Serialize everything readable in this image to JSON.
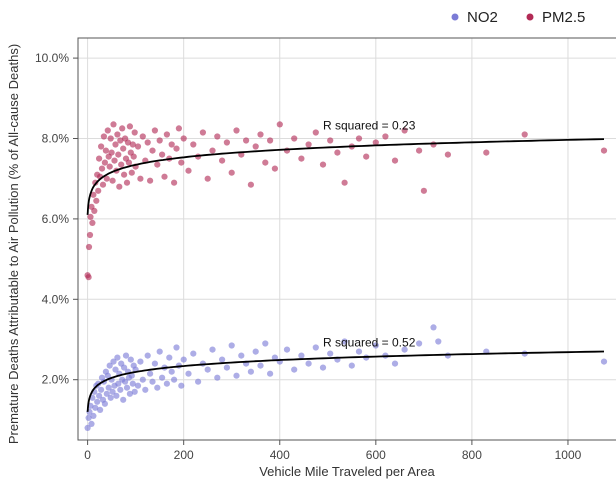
{
  "chart_data": {
    "type": "scatter",
    "xlabel": "Vehicle Mile Traveled per Area",
    "ylabel": "Premature Deaths Attributable to Air Pollution (% of All-cause Deaths)",
    "xlim": [
      -20,
      1100
    ],
    "ylim": [
      0.5,
      10.5
    ],
    "xticks": [
      0,
      200,
      400,
      600,
      800,
      1000
    ],
    "yticks": [
      2.0,
      4.0,
      6.0,
      8.0,
      10.0
    ],
    "ytick_labels": [
      "2.0%",
      "4.0%",
      "6.0%",
      "8.0%",
      "10.0%"
    ],
    "grid": true,
    "legend_position": "top-right",
    "series": [
      {
        "name": "NO2",
        "color": "#7b7bd6",
        "annotation": "R squared = 0.52",
        "annotation_at": [
          490,
          2.82
        ],
        "fit": {
          "a": 1.2,
          "b": 0.215,
          "xmax": 1075
        },
        "points": [
          [
            0,
            0.8
          ],
          [
            2,
            1.05
          ],
          [
            4,
            1.2
          ],
          [
            6,
            1.35
          ],
          [
            8,
            0.9
          ],
          [
            10,
            1.55
          ],
          [
            12,
            1.1
          ],
          [
            14,
            1.7
          ],
          [
            16,
            1.3
          ],
          [
            18,
            1.85
          ],
          [
            20,
            1.45
          ],
          [
            22,
            1.9
          ],
          [
            24,
            1.6
          ],
          [
            26,
            1.25
          ],
          [
            28,
            1.75
          ],
          [
            30,
            2.05
          ],
          [
            32,
            1.5
          ],
          [
            34,
            1.95
          ],
          [
            36,
            1.4
          ],
          [
            38,
            2.2
          ],
          [
            40,
            1.65
          ],
          [
            42,
            2.1
          ],
          [
            44,
            1.8
          ],
          [
            46,
            2.35
          ],
          [
            48,
            1.55
          ],
          [
            50,
            2.0
          ],
          [
            52,
            1.7
          ],
          [
            54,
            2.45
          ],
          [
            56,
            1.85
          ],
          [
            58,
            2.25
          ],
          [
            60,
            1.6
          ],
          [
            62,
            2.55
          ],
          [
            64,
            1.9
          ],
          [
            66,
            2.15
          ],
          [
            68,
            1.75
          ],
          [
            70,
            2.4
          ],
          [
            72,
            2.0
          ],
          [
            74,
            1.5
          ],
          [
            76,
            2.3
          ],
          [
            78,
            1.95
          ],
          [
            80,
            2.6
          ],
          [
            82,
            1.8
          ],
          [
            84,
            2.2
          ],
          [
            86,
            2.05
          ],
          [
            88,
            1.65
          ],
          [
            90,
            2.5
          ],
          [
            92,
            2.1
          ],
          [
            94,
            1.9
          ],
          [
            96,
            2.35
          ],
          [
            98,
            1.7
          ],
          [
            100,
            2.25
          ],
          [
            105,
            1.85
          ],
          [
            110,
            2.45
          ],
          [
            115,
            2.0
          ],
          [
            120,
            1.75
          ],
          [
            125,
            2.6
          ],
          [
            130,
            2.15
          ],
          [
            135,
            1.95
          ],
          [
            140,
            2.4
          ],
          [
            145,
            1.8
          ],
          [
            150,
            2.7
          ],
          [
            155,
            2.05
          ],
          [
            160,
            2.3
          ],
          [
            165,
            1.9
          ],
          [
            170,
            2.55
          ],
          [
            175,
            2.2
          ],
          [
            180,
            2.0
          ],
          [
            185,
            2.8
          ],
          [
            190,
            2.35
          ],
          [
            195,
            1.85
          ],
          [
            200,
            2.5
          ],
          [
            210,
            2.15
          ],
          [
            220,
            2.65
          ],
          [
            230,
            1.95
          ],
          [
            240,
            2.4
          ],
          [
            250,
            2.25
          ],
          [
            260,
            2.75
          ],
          [
            270,
            2.05
          ],
          [
            280,
            2.5
          ],
          [
            290,
            2.3
          ],
          [
            300,
            2.85
          ],
          [
            310,
            2.1
          ],
          [
            320,
            2.6
          ],
          [
            330,
            2.4
          ],
          [
            340,
            2.2
          ],
          [
            350,
            2.7
          ],
          [
            360,
            2.35
          ],
          [
            370,
            2.9
          ],
          [
            380,
            2.15
          ],
          [
            390,
            2.55
          ],
          [
            400,
            2.45
          ],
          [
            415,
            2.75
          ],
          [
            430,
            2.25
          ],
          [
            445,
            2.6
          ],
          [
            460,
            2.4
          ],
          [
            475,
            2.8
          ],
          [
            490,
            2.3
          ],
          [
            505,
            2.65
          ],
          [
            520,
            2.5
          ],
          [
            535,
            2.95
          ],
          [
            550,
            2.35
          ],
          [
            565,
            2.7
          ],
          [
            580,
            2.55
          ],
          [
            600,
            2.85
          ],
          [
            620,
            2.6
          ],
          [
            640,
            2.4
          ],
          [
            660,
            2.75
          ],
          [
            690,
            2.9
          ],
          [
            720,
            3.3
          ],
          [
            730,
            2.95
          ],
          [
            750,
            2.6
          ],
          [
            830,
            2.7
          ],
          [
            910,
            2.65
          ],
          [
            1075,
            2.45
          ]
        ]
      },
      {
        "name": "PM2.5",
        "color": "#b22a55",
        "annotation": "R squared = 0.23",
        "annotation_at": [
          490,
          8.22
        ],
        "fit": {
          "a": 6.1,
          "b": 0.27,
          "xmax": 1075
        },
        "points": [
          [
            0,
            4.6
          ],
          [
            2,
            4.55
          ],
          [
            3,
            5.3
          ],
          [
            5,
            5.6
          ],
          [
            6,
            6.05
          ],
          [
            8,
            6.3
          ],
          [
            10,
            5.9
          ],
          [
            12,
            6.6
          ],
          [
            14,
            6.2
          ],
          [
            16,
            6.9
          ],
          [
            18,
            6.45
          ],
          [
            20,
            7.1
          ],
          [
            22,
            6.7
          ],
          [
            24,
            7.5
          ],
          [
            26,
            7.05
          ],
          [
            28,
            7.8
          ],
          [
            30,
            7.25
          ],
          [
            32,
            6.85
          ],
          [
            34,
            8.05
          ],
          [
            36,
            7.4
          ],
          [
            38,
            7.7
          ],
          [
            40,
            7.0
          ],
          [
            42,
            8.2
          ],
          [
            44,
            7.55
          ],
          [
            46,
            7.3
          ],
          [
            48,
            8.0
          ],
          [
            50,
            7.65
          ],
          [
            52,
            6.95
          ],
          [
            54,
            8.35
          ],
          [
            56,
            7.45
          ],
          [
            58,
            7.85
          ],
          [
            60,
            7.2
          ],
          [
            62,
            8.1
          ],
          [
            64,
            7.6
          ],
          [
            66,
            6.8
          ],
          [
            68,
            7.95
          ],
          [
            70,
            7.35
          ],
          [
            72,
            8.25
          ],
          [
            74,
            7.75
          ],
          [
            76,
            7.1
          ],
          [
            78,
            8.0
          ],
          [
            80,
            7.5
          ],
          [
            82,
            6.9
          ],
          [
            84,
            7.9
          ],
          [
            86,
            7.4
          ],
          [
            88,
            8.3
          ],
          [
            90,
            7.65
          ],
          [
            92,
            7.15
          ],
          [
            94,
            7.85
          ],
          [
            96,
            7.55
          ],
          [
            98,
            8.15
          ],
          [
            100,
            7.3
          ],
          [
            105,
            7.8
          ],
          [
            110,
            7.0
          ],
          [
            115,
            8.05
          ],
          [
            120,
            7.45
          ],
          [
            125,
            7.9
          ],
          [
            130,
            6.95
          ],
          [
            135,
            7.7
          ],
          [
            140,
            8.2
          ],
          [
            145,
            7.35
          ],
          [
            150,
            7.95
          ],
          [
            155,
            7.6
          ],
          [
            160,
            7.05
          ],
          [
            165,
            8.1
          ],
          [
            170,
            7.5
          ],
          [
            175,
            7.85
          ],
          [
            180,
            6.9
          ],
          [
            185,
            7.75
          ],
          [
            190,
            8.25
          ],
          [
            195,
            7.4
          ],
          [
            200,
            8.0
          ],
          [
            210,
            7.2
          ],
          [
            220,
            7.85
          ],
          [
            230,
            7.55
          ],
          [
            240,
            8.15
          ],
          [
            250,
            7.0
          ],
          [
            260,
            7.7
          ],
          [
            270,
            8.05
          ],
          [
            280,
            7.45
          ],
          [
            290,
            7.9
          ],
          [
            300,
            7.15
          ],
          [
            310,
            8.2
          ],
          [
            320,
            7.6
          ],
          [
            330,
            7.95
          ],
          [
            340,
            6.85
          ],
          [
            350,
            7.8
          ],
          [
            360,
            8.1
          ],
          [
            370,
            7.4
          ],
          [
            380,
            7.95
          ],
          [
            390,
            7.25
          ],
          [
            400,
            8.35
          ],
          [
            415,
            7.7
          ],
          [
            430,
            8.0
          ],
          [
            445,
            7.5
          ],
          [
            460,
            7.85
          ],
          [
            475,
            8.15
          ],
          [
            490,
            7.35
          ],
          [
            505,
            7.95
          ],
          [
            520,
            7.65
          ],
          [
            535,
            6.9
          ],
          [
            550,
            7.8
          ],
          [
            565,
            8.0
          ],
          [
            580,
            7.55
          ],
          [
            600,
            7.9
          ],
          [
            620,
            8.05
          ],
          [
            640,
            7.45
          ],
          [
            660,
            8.2
          ],
          [
            690,
            7.7
          ],
          [
            700,
            6.7
          ],
          [
            720,
            7.85
          ],
          [
            750,
            7.6
          ],
          [
            830,
            7.65
          ],
          [
            910,
            8.1
          ],
          [
            1075,
            7.7
          ]
        ]
      }
    ]
  }
}
